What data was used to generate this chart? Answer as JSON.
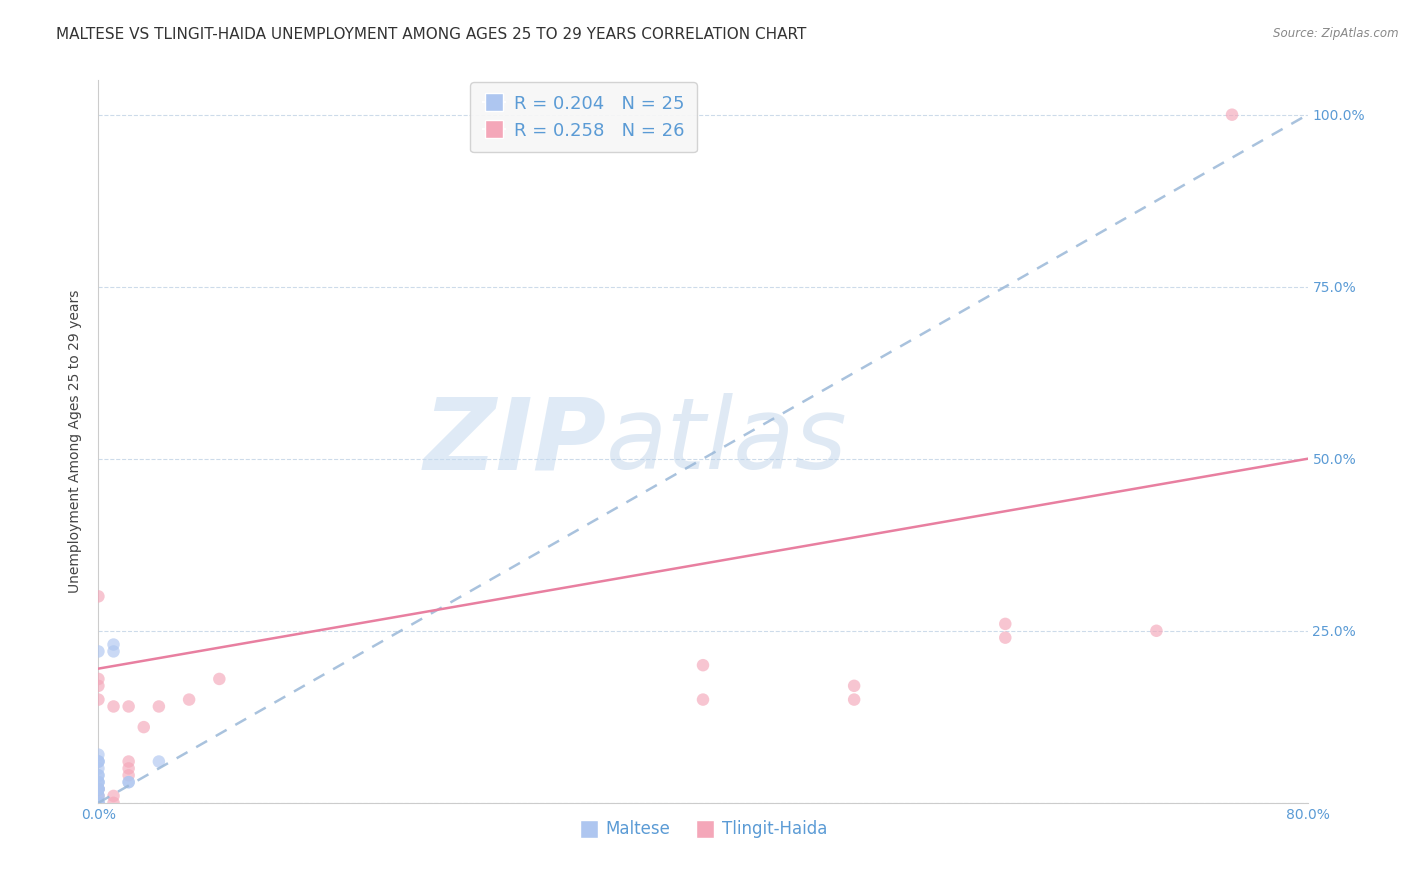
{
  "title": "MALTESE VS TLINGIT-HAIDA UNEMPLOYMENT AMONG AGES 25 TO 29 YEARS CORRELATION CHART",
  "source": "Source: ZipAtlas.com",
  "ylabel": "Unemployment Among Ages 25 to 29 years",
  "xlim": [
    0.0,
    0.8
  ],
  "ylim": [
    0.0,
    1.05
  ],
  "xticks": [
    0.0,
    0.1,
    0.2,
    0.3,
    0.4,
    0.5,
    0.6,
    0.7,
    0.8
  ],
  "xticklabels": [
    "0.0%",
    "",
    "",
    "",
    "",
    "",
    "",
    "",
    "80.0%"
  ],
  "yticks": [
    0.0,
    0.25,
    0.5,
    0.75,
    1.0
  ],
  "yticklabels": [
    "",
    "25.0%",
    "50.0%",
    "75.0%",
    "100.0%"
  ],
  "maltese_color": "#aec6f0",
  "tlingit_color": "#f4a7b9",
  "maltese_line_color": "#9ab8d8",
  "tlingit_line_color": "#e87fa0",
  "legend_text_color": "#5b9bd5",
  "tick_color": "#5b9bd5",
  "maltese_R": 0.204,
  "maltese_N": 25,
  "tlingit_R": 0.258,
  "tlingit_N": 26,
  "watermark_zip": "ZIP",
  "watermark_atlas": "atlas",
  "maltese_x": [
    0.0,
    0.0,
    0.0,
    0.0,
    0.0,
    0.0,
    0.0,
    0.0,
    0.0,
    0.0,
    0.0,
    0.0,
    0.0,
    0.0,
    0.0,
    0.0,
    0.0,
    0.0,
    0.0,
    0.0,
    0.01,
    0.01,
    0.02,
    0.02,
    0.04
  ],
  "maltese_y": [
    0.0,
    0.0,
    0.0,
    0.01,
    0.01,
    0.02,
    0.02,
    0.02,
    0.02,
    0.03,
    0.03,
    0.03,
    0.04,
    0.04,
    0.05,
    0.06,
    0.06,
    0.06,
    0.07,
    0.22,
    0.22,
    0.23,
    0.03,
    0.03,
    0.06
  ],
  "tlingit_x": [
    0.0,
    0.0,
    0.0,
    0.0,
    0.0,
    0.0,
    0.0,
    0.01,
    0.01,
    0.01,
    0.02,
    0.02,
    0.02,
    0.02,
    0.03,
    0.04,
    0.06,
    0.08,
    0.4,
    0.4,
    0.5,
    0.5,
    0.6,
    0.6,
    0.7,
    0.75
  ],
  "tlingit_y": [
    0.0,
    0.01,
    0.02,
    0.15,
    0.17,
    0.18,
    0.3,
    0.0,
    0.01,
    0.14,
    0.04,
    0.05,
    0.06,
    0.14,
    0.11,
    0.14,
    0.15,
    0.18,
    0.15,
    0.2,
    0.15,
    0.17,
    0.24,
    0.26,
    0.25,
    1.0
  ],
  "maltese_line_x0": 0.0,
  "maltese_line_y0": 0.0,
  "maltese_line_x1": 0.8,
  "maltese_line_y1": 1.0,
  "tlingit_line_x0": 0.0,
  "tlingit_line_y0": 0.195,
  "tlingit_line_x1": 0.8,
  "tlingit_line_y1": 0.5,
  "background_color": "#ffffff",
  "grid_color": "#c8d8e8",
  "title_fontsize": 11,
  "axis_label_fontsize": 10,
  "tick_fontsize": 10,
  "marker_size": 9,
  "marker_alpha": 0.65,
  "line_width": 1.8
}
